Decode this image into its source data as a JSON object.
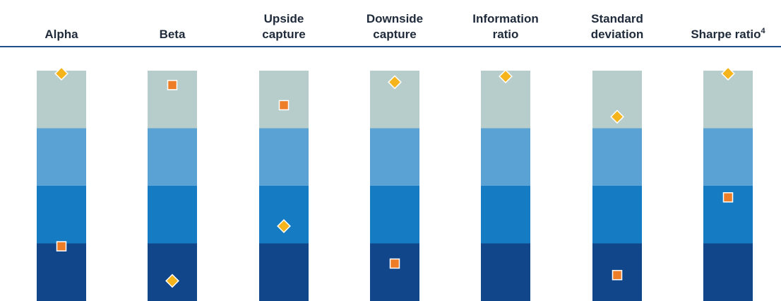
{
  "colors": {
    "quartile_bands": [
      "#b7cdcb",
      "#5aa2d4",
      "#157cc3",
      "#12468b"
    ],
    "diamond": "#f6b41c",
    "square": "#ee7d28",
    "marker_outline": "#ffffff",
    "rule": "#1f4e8c",
    "header_text": "#1f2a3a"
  },
  "chart_data": {
    "type": "scatter",
    "title": "",
    "xlabel": "",
    "ylabel": "",
    "bands": 4,
    "ylim": [
      0,
      4
    ],
    "categories": [
      {
        "lines": [
          "Alpha"
        ],
        "sup": ""
      },
      {
        "lines": [
          "Beta"
        ],
        "sup": ""
      },
      {
        "lines": [
          "Upside",
          "capture"
        ],
        "sup": ""
      },
      {
        "lines": [
          "Downside",
          "capture"
        ],
        "sup": ""
      },
      {
        "lines": [
          "Information",
          "ratio"
        ],
        "sup": ""
      },
      {
        "lines": [
          "Standard",
          "deviation"
        ],
        "sup": ""
      },
      {
        "lines": [
          "Sharpe ratio"
        ],
        "sup": "4"
      }
    ],
    "series": [
      {
        "marker": "diamond",
        "values": [
          3.95,
          0.35,
          1.3,
          3.8,
          3.9,
          3.2,
          3.95
        ]
      },
      {
        "marker": "square",
        "values": [
          0.95,
          3.75,
          3.4,
          0.65,
          null,
          0.45,
          1.8
        ]
      }
    ]
  }
}
